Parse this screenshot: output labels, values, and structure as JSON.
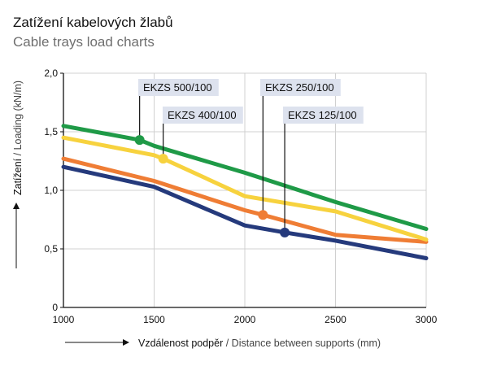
{
  "title": "Zatížení kabelových žlabů",
  "subtitle": "Cable trays load charts",
  "chart_data": {
    "type": "line",
    "xlabel_main": "Vzdálenost podpěr",
    "xlabel_rest": " / Distance between supports (mm)",
    "ylabel_main": "Zatížení",
    "ylabel_rest": " / Loading (kN/m)",
    "xlim": [
      1000,
      3000
    ],
    "ylim": [
      0,
      2.0
    ],
    "xticks": [
      1000,
      1500,
      2000,
      2500,
      3000
    ],
    "yticks": [
      0,
      0.5,
      1.0,
      1.5,
      2.0
    ],
    "ytick_labels": [
      "0",
      "0,5",
      "1,0",
      "1,5",
      "2,0"
    ],
    "grid": true,
    "series": [
      {
        "name": "EKZS 500/100",
        "color": "#1f9a47",
        "x": [
          1000,
          1420,
          1500,
          2000,
          2500,
          3000
        ],
        "y": [
          1.55,
          1.43,
          1.38,
          1.15,
          0.9,
          0.67
        ],
        "marker": [
          1420,
          1.43
        ]
      },
      {
        "name": "EKZS 400/100",
        "color": "#f7d23e",
        "x": [
          1000,
          1500,
          1550,
          2000,
          2500,
          3000
        ],
        "y": [
          1.45,
          1.3,
          1.27,
          0.95,
          0.82,
          0.58
        ],
        "marker": [
          1550,
          1.27
        ]
      },
      {
        "name": "EKZS 250/100",
        "color": "#ef7d35",
        "x": [
          1000,
          1500,
          2000,
          2100,
          2500,
          3000
        ],
        "y": [
          1.27,
          1.08,
          0.83,
          0.79,
          0.62,
          0.56
        ],
        "marker": [
          2100,
          0.79
        ]
      },
      {
        "name": "EKZS 125/100",
        "color": "#253a7c",
        "x": [
          1000,
          1500,
          2000,
          2220,
          2500,
          3000
        ],
        "y": [
          1.2,
          1.03,
          0.7,
          0.64,
          0.57,
          0.42
        ],
        "marker": [
          2220,
          0.64
        ]
      }
    ],
    "legend_box_color": "#dde2ee"
  }
}
